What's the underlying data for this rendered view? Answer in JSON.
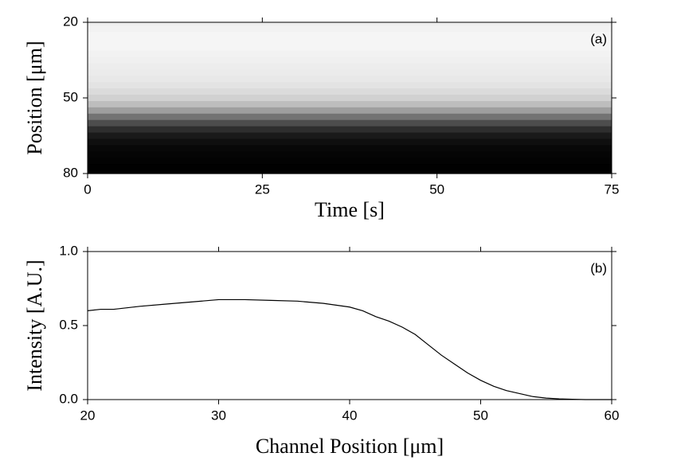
{
  "chart_data": [
    {
      "type": "heatmap",
      "annotation": "(a)",
      "xlabel": "Time [s]",
      "ylabel": "Position [μm]",
      "colormap": "gray",
      "y": [
        20,
        22.5,
        25,
        27.5,
        30,
        32.5,
        35,
        37.5,
        40,
        42.5,
        45,
        47.5,
        50,
        52.5,
        55,
        57.5,
        60,
        62.5,
        65,
        67.5,
        70,
        72.5,
        75,
        77.5,
        80
      ],
      "values": [
        0.93,
        0.95,
        0.96,
        0.96,
        0.96,
        0.95,
        0.94,
        0.93,
        0.92,
        0.91,
        0.89,
        0.86,
        0.82,
        0.74,
        0.62,
        0.45,
        0.3,
        0.18,
        0.1,
        0.06,
        0.03,
        0.02,
        0.01,
        0.005,
        0
      ],
      "xlim": [
        0,
        75
      ],
      "ylim": [
        80,
        20
      ],
      "xticks": [
        0,
        25,
        50,
        75
      ],
      "yticks": [
        20,
        50,
        80
      ]
    },
    {
      "type": "line",
      "annotation": "(b)",
      "xlabel": "Channel Position [μm]",
      "ylabel": "Intensity [A.U.]",
      "color": "#000000",
      "x": [
        20,
        21,
        22,
        24,
        26,
        28,
        30,
        32,
        34,
        36,
        38,
        40,
        41,
        42,
        43,
        44,
        45,
        46,
        47,
        48,
        49,
        50,
        51,
        52,
        53,
        54,
        55,
        56,
        57,
        58,
        60
      ],
      "values": [
        0.6,
        0.61,
        0.61,
        0.63,
        0.645,
        0.66,
        0.675,
        0.675,
        0.67,
        0.665,
        0.65,
        0.625,
        0.6,
        0.56,
        0.53,
        0.49,
        0.44,
        0.37,
        0.3,
        0.24,
        0.18,
        0.13,
        0.09,
        0.06,
        0.04,
        0.02,
        0.01,
        0.005,
        0.002,
        0,
        0
      ],
      "xlim": [
        20,
        60
      ],
      "ylim": [
        0,
        1
      ],
      "xticks": [
        20,
        30,
        40,
        50,
        60
      ],
      "yticks": [
        {
          "value": 0,
          "label": "0.0"
        },
        0.5,
        {
          "value": 1,
          "label": "1.0"
        }
      ]
    }
  ]
}
